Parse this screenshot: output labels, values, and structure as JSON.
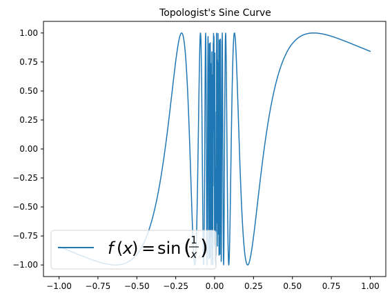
{
  "chart_data": {
    "type": "line",
    "title": "Topologist's Sine Curve",
    "xlabel": "",
    "ylabel": "",
    "xlim": [
      -1.1,
      1.1
    ],
    "ylim": [
      -1.1,
      1.1
    ],
    "x_ticks": [
      -1.0,
      -0.75,
      -0.5,
      -0.25,
      0.0,
      0.25,
      0.5,
      0.75,
      1.0
    ],
    "x_tick_labels": [
      "−1.00",
      "−0.75",
      "−0.50",
      "−0.25",
      "0.00",
      "0.25",
      "0.50",
      "0.75",
      "1.00"
    ],
    "y_ticks": [
      1.0,
      0.75,
      0.5,
      0.25,
      0.0,
      -0.25,
      -0.5,
      -0.75,
      -1.0
    ],
    "y_tick_labels": [
      "1.00",
      "0.75",
      "0.50",
      "0.25",
      "0.00",
      "−0.25",
      "−0.50",
      "−0.75",
      "−1.00"
    ],
    "grid": false,
    "legend_position": "lower-left",
    "series": [
      {
        "name": "f(x) = sin(1/x)",
        "function": "sin(1/x)",
        "x_domain": [
          -1.0,
          1.0
        ],
        "color": "#1f77b4",
        "line_style": "solid"
      }
    ],
    "legend": {
      "f": "f",
      "open_paren": "(",
      "x": "x",
      "close_paren": ")",
      "equals": "=",
      "sin": "sin",
      "big_open_paren": "(",
      "numerator": "1",
      "denominator": "x",
      "big_close_paren": ")"
    }
  }
}
